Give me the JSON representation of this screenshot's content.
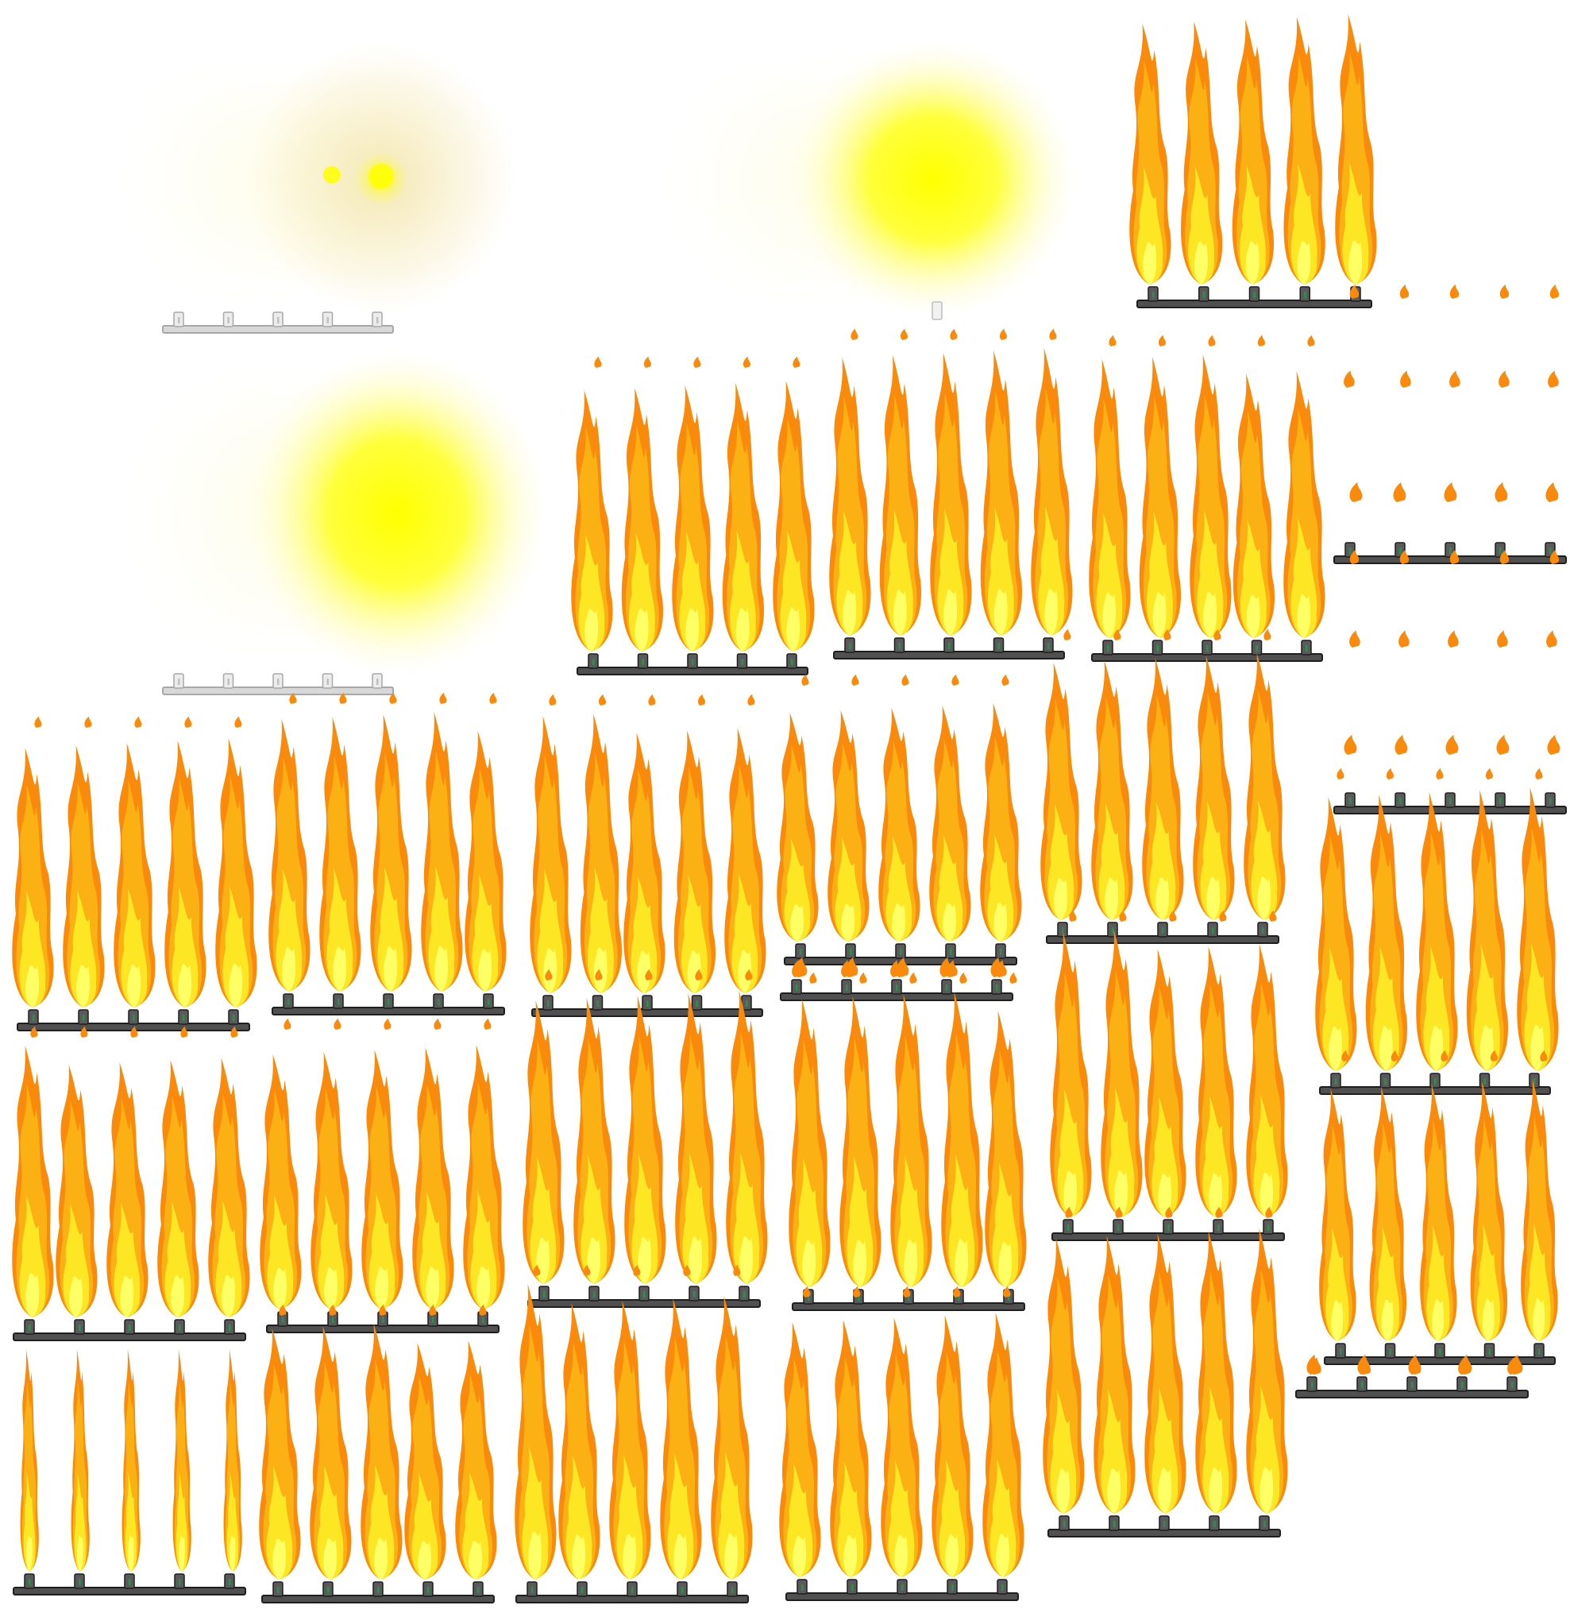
{
  "sheet": {
    "name": "burner-flame-spritesheet",
    "background": "#ffffff",
    "colors": {
      "flame_outer": "#f98a0c",
      "flame_mid": "#fbb014",
      "flame_inner": "#fde725",
      "flame_core": "#ffff66",
      "glow": "#ffff00",
      "glow_soft": "#f2e3a8",
      "pipe": "#505050",
      "pipe_outline": "#1e1e1e",
      "nozzle": "#5a5a5a",
      "nozzle_accent": "#2e8f4e",
      "pipe_light": "#d8d8d8"
    },
    "burner_nozzle_count": 5,
    "sprite_kinds": [
      "glow-halo",
      "tall-flames",
      "flame-sparks",
      "empty-burner"
    ]
  }
}
